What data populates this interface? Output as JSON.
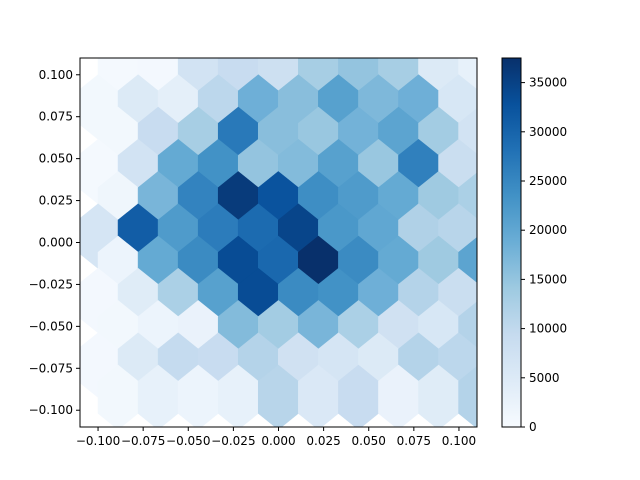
{
  "chart_data": {
    "type": "heatmap",
    "subtype": "hexbin",
    "title": "",
    "xlabel": "",
    "ylabel": "",
    "xlim": [
      -0.11,
      0.11
    ],
    "ylim": [
      -0.11,
      0.11
    ],
    "grid": false,
    "hex_size": [
      0.0222,
      0.0192
    ],
    "x_ticks": [
      -0.1,
      -0.075,
      -0.05,
      -0.025,
      0.0,
      0.025,
      0.05,
      0.075,
      0.1
    ],
    "x_tick_labels": [
      "−0.100",
      "−0.075",
      "−0.050",
      "−0.025",
      "0.000",
      "0.025",
      "0.050",
      "0.075",
      "0.100"
    ],
    "y_ticks": [
      -0.1,
      -0.075,
      -0.05,
      -0.025,
      0.0,
      0.025,
      0.05,
      0.075,
      0.1
    ],
    "y_tick_labels": [
      "−0.100",
      "−0.075",
      "−0.050",
      "−0.025",
      "0.000",
      "0.025",
      "0.050",
      "0.075",
      "0.100"
    ],
    "colorbar": {
      "colormap": "Blues",
      "colors": [
        "#f7fbff",
        "#deebf7",
        "#c6dbef",
        "#9ecae1",
        "#6baed6",
        "#4292c6",
        "#2171b5",
        "#08519c",
        "#08306b"
      ],
      "range": [
        0,
        37500
      ],
      "ticks": [
        0,
        5000,
        10000,
        15000,
        20000,
        25000,
        30000,
        35000
      ],
      "tick_labels": [
        "0",
        "5000",
        "10000",
        "15000",
        "20000",
        "25000",
        "30000",
        "35000"
      ]
    },
    "rows": [
      {
        "y": 0.1,
        "x0": -0.0889,
        "counts": [
          500,
          800,
          7000,
          9000,
          8000,
          13000,
          15000,
          13000,
          5000,
          3000,
          2000
        ]
      },
      {
        "y": 0.0808,
        "x0": -0.1,
        "counts": [
          1000,
          5000,
          3500,
          10500,
          18500,
          16000,
          21000,
          17000,
          18500,
          6000,
          4000
        ]
      },
      {
        "y": 0.0615,
        "x0": -0.0889,
        "counts": [
          1000,
          9000,
          13000,
          27000,
          16000,
          14500,
          18000,
          20500,
          13500,
          7000,
          10000
        ]
      },
      {
        "y": 0.0423,
        "x0": -0.1,
        "counts": [
          500,
          7000,
          19500,
          23500,
          15000,
          16500,
          21000,
          14500,
          26000,
          8500,
          15500
        ]
      },
      {
        "y": 0.0231,
        "x0": -0.0889,
        "counts": [
          1500,
          17500,
          25500,
          36000,
          32500,
          24000,
          22000,
          19500,
          14000,
          12500,
          6000
        ]
      },
      {
        "y": 0.0038,
        "x0": -0.1,
        "counts": [
          6500,
          31000,
          22000,
          26500,
          29000,
          34500,
          22500,
          20000,
          12000,
          11000,
          1000
        ]
      },
      {
        "y": -0.0154,
        "x0": -0.0889,
        "counts": [
          2000,
          19500,
          24500,
          33500,
          29500,
          37500,
          24500,
          19500,
          14000,
          20500,
          17000
        ]
      },
      {
        "y": -0.0346,
        "x0": -0.1,
        "counts": [
          800,
          4500,
          12500,
          21000,
          33500,
          24500,
          23500,
          18500,
          11500,
          8500,
          5000
        ]
      },
      {
        "y": -0.0538,
        "x0": -0.0889,
        "counts": [
          1000,
          2000,
          2500,
          16500,
          13500,
          17500,
          12500,
          7500,
          6000,
          11500,
          8500
        ]
      },
      {
        "y": -0.0731,
        "x0": -0.1,
        "counts": [
          800,
          5000,
          9500,
          9000,
          11500,
          7500,
          6500,
          5000,
          11500,
          10500,
          800
        ]
      },
      {
        "y": -0.0923,
        "x0": -0.0889,
        "counts": [
          1000,
          3000,
          2000,
          3000,
          11000,
          5500,
          9000,
          2500,
          4500,
          11500,
          5000
        ]
      }
    ]
  }
}
